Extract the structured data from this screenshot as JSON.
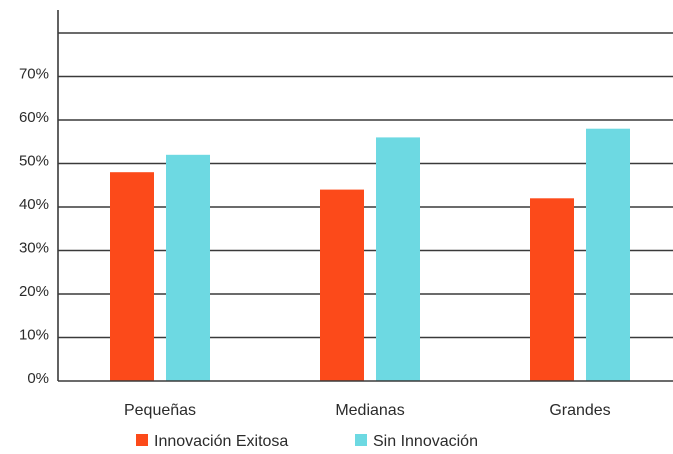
{
  "chart_data": {
    "type": "bar",
    "categories": [
      "Pequeñas",
      "Medianas",
      "Grandes"
    ],
    "series": [
      {
        "name": "Innovación Exitosa",
        "values": [
          48,
          44,
          42
        ],
        "color": "#fc4a1a"
      },
      {
        "name": "Sin Innovación",
        "values": [
          52,
          56,
          58
        ],
        "color": "#6dd9e2"
      }
    ],
    "y_ticks": [
      {
        "value": 0,
        "label": "0%"
      },
      {
        "value": 10,
        "label": "10%"
      },
      {
        "value": 20,
        "label": "20%"
      },
      {
        "value": 30,
        "label": "30%"
      },
      {
        "value": 40,
        "label": "40%"
      },
      {
        "value": 50,
        "label": "50%"
      },
      {
        "value": 60,
        "label": "60%"
      },
      {
        "value": 70,
        "label": "70%"
      }
    ],
    "ylim": [
      0,
      80
    ],
    "grid": true,
    "legend_position": "bottom",
    "title": "",
    "xlabel": "",
    "ylabel": ""
  }
}
